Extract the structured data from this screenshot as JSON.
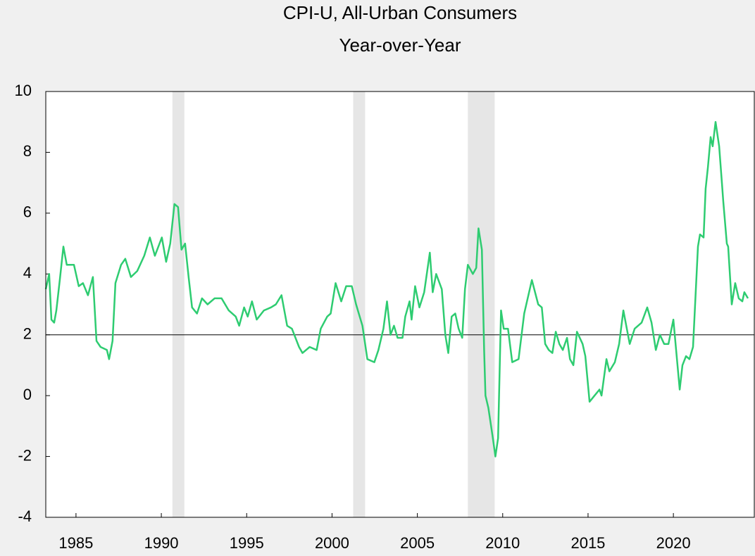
{
  "chart_data": {
    "type": "line",
    "title": "CPI-U, All-Urban Consumers",
    "subtitle": "Year-over-Year",
    "color": "#2ecc71",
    "xlim": [
      1983.23,
      2024.74
    ],
    "ylim": [
      -4,
      10
    ],
    "xticks": [
      1985,
      1990,
      1995,
      2000,
      2005,
      2010,
      2015,
      2020
    ],
    "yticks": [
      -4,
      -2,
      0,
      2,
      4,
      6,
      8,
      10
    ],
    "reference_line": 2,
    "shaded_regions": [
      [
        1990.65,
        1991.35
      ],
      [
        2001.24,
        2001.94
      ],
      [
        2007.96,
        2009.53
      ]
    ],
    "x": [
      1983.23,
      1983.43,
      1983.56,
      1983.72,
      1983.85,
      1984.05,
      1984.26,
      1984.46,
      1984.88,
      1985.16,
      1985.41,
      1985.7,
      1985.99,
      1986.2,
      1986.44,
      1986.81,
      1986.94,
      1987.14,
      1987.31,
      1987.64,
      1987.89,
      1988.22,
      1988.59,
      1989.0,
      1989.33,
      1989.62,
      1990.03,
      1990.28,
      1990.52,
      1990.77,
      1990.98,
      1991.18,
      1991.39,
      1991.6,
      1991.8,
      1992.09,
      1992.38,
      1992.71,
      1993.12,
      1993.53,
      1993.95,
      1994.36,
      1994.56,
      1994.85,
      1995.06,
      1995.31,
      1995.59,
      1996.01,
      1996.42,
      1996.71,
      1997.04,
      1997.37,
      1997.65,
      1998.07,
      1998.27,
      1998.69,
      1999.1,
      1999.34,
      1999.72,
      1999.92,
      2000.21,
      2000.54,
      2000.83,
      2001.16,
      2001.41,
      2001.78,
      2002.07,
      2002.48,
      2002.72,
      2003.01,
      2003.22,
      2003.43,
      2003.63,
      2003.84,
      2004.13,
      2004.29,
      2004.54,
      2004.66,
      2004.87,
      2005.12,
      2005.4,
      2005.73,
      2005.9,
      2006.1,
      2006.43,
      2006.64,
      2006.81,
      2007.01,
      2007.22,
      2007.42,
      2007.63,
      2007.79,
      2007.96,
      2008.25,
      2008.45,
      2008.58,
      2008.78,
      2008.91,
      2008.99,
      2009.16,
      2009.4,
      2009.57,
      2009.73,
      2009.9,
      2010.06,
      2010.31,
      2010.56,
      2010.93,
      2011.26,
      2011.71,
      2012.08,
      2012.29,
      2012.49,
      2012.7,
      2012.91,
      2013.11,
      2013.32,
      2013.52,
      2013.77,
      2013.94,
      2014.14,
      2014.35,
      2014.68,
      2014.84,
      2015.09,
      2015.38,
      2015.67,
      2015.79,
      2016.08,
      2016.25,
      2016.57,
      2016.82,
      2017.07,
      2017.44,
      2017.73,
      2018.14,
      2018.47,
      2018.72,
      2018.97,
      2019.21,
      2019.46,
      2019.71,
      2020.0,
      2020.16,
      2020.37,
      2020.53,
      2020.74,
      2020.94,
      2021.15,
      2021.44,
      2021.56,
      2021.77,
      2021.89,
      2022.02,
      2022.18,
      2022.3,
      2022.47,
      2022.68,
      2022.84,
      2022.92,
      2023.13,
      2023.21,
      2023.42,
      2023.62,
      2023.83,
      2024.04,
      2024.16,
      2024.37
    ],
    "values": [
      3.5,
      4.0,
      2.5,
      2.4,
      2.8,
      3.8,
      4.9,
      4.3,
      4.3,
      3.6,
      3.7,
      3.3,
      3.9,
      1.8,
      1.6,
      1.5,
      1.2,
      1.8,
      3.7,
      4.3,
      4.5,
      3.9,
      4.1,
      4.6,
      5.2,
      4.6,
      5.2,
      4.4,
      5.0,
      6.3,
      6.2,
      4.8,
      5.0,
      3.9,
      2.9,
      2.7,
      3.2,
      3.0,
      3.2,
      3.2,
      2.8,
      2.6,
      2.3,
      2.9,
      2.6,
      3.1,
      2.5,
      2.8,
      2.9,
      3.0,
      3.3,
      2.3,
      2.2,
      1.6,
      1.4,
      1.6,
      1.5,
      2.2,
      2.6,
      2.7,
      3.7,
      3.1,
      3.6,
      3.6,
      3.0,
      2.3,
      1.2,
      1.1,
      1.5,
      2.2,
      3.1,
      2.0,
      2.3,
      1.9,
      1.9,
      2.6,
      3.1,
      2.5,
      3.6,
      2.9,
      3.4,
      4.7,
      3.4,
      4.0,
      3.5,
      2.0,
      1.4,
      2.6,
      2.7,
      2.2,
      1.9,
      3.5,
      4.3,
      4.0,
      4.2,
      5.5,
      4.8,
      1.5,
      0.0,
      -0.4,
      -1.3,
      -2.0,
      -1.4,
      2.8,
      2.2,
      2.2,
      1.1,
      1.2,
      2.7,
      3.8,
      3.0,
      2.9,
      1.7,
      1.5,
      1.4,
      2.1,
      1.7,
      1.5,
      1.9,
      1.2,
      1.0,
      2.1,
      1.7,
      1.3,
      -0.2,
      0.0,
      0.2,
      0.0,
      1.2,
      0.8,
      1.1,
      1.7,
      2.8,
      1.7,
      2.2,
      2.4,
      2.9,
      2.4,
      1.5,
      2.0,
      1.7,
      1.7,
      2.5,
      1.5,
      0.2,
      1.0,
      1.3,
      1.2,
      1.6,
      4.9,
      5.3,
      5.2,
      6.8,
      7.5,
      8.5,
      8.2,
      9.0,
      8.2,
      7.0,
      6.4,
      5.0,
      4.9,
      3.0,
      3.7,
      3.2,
      3.1,
      3.4,
      3.2
    ]
  }
}
